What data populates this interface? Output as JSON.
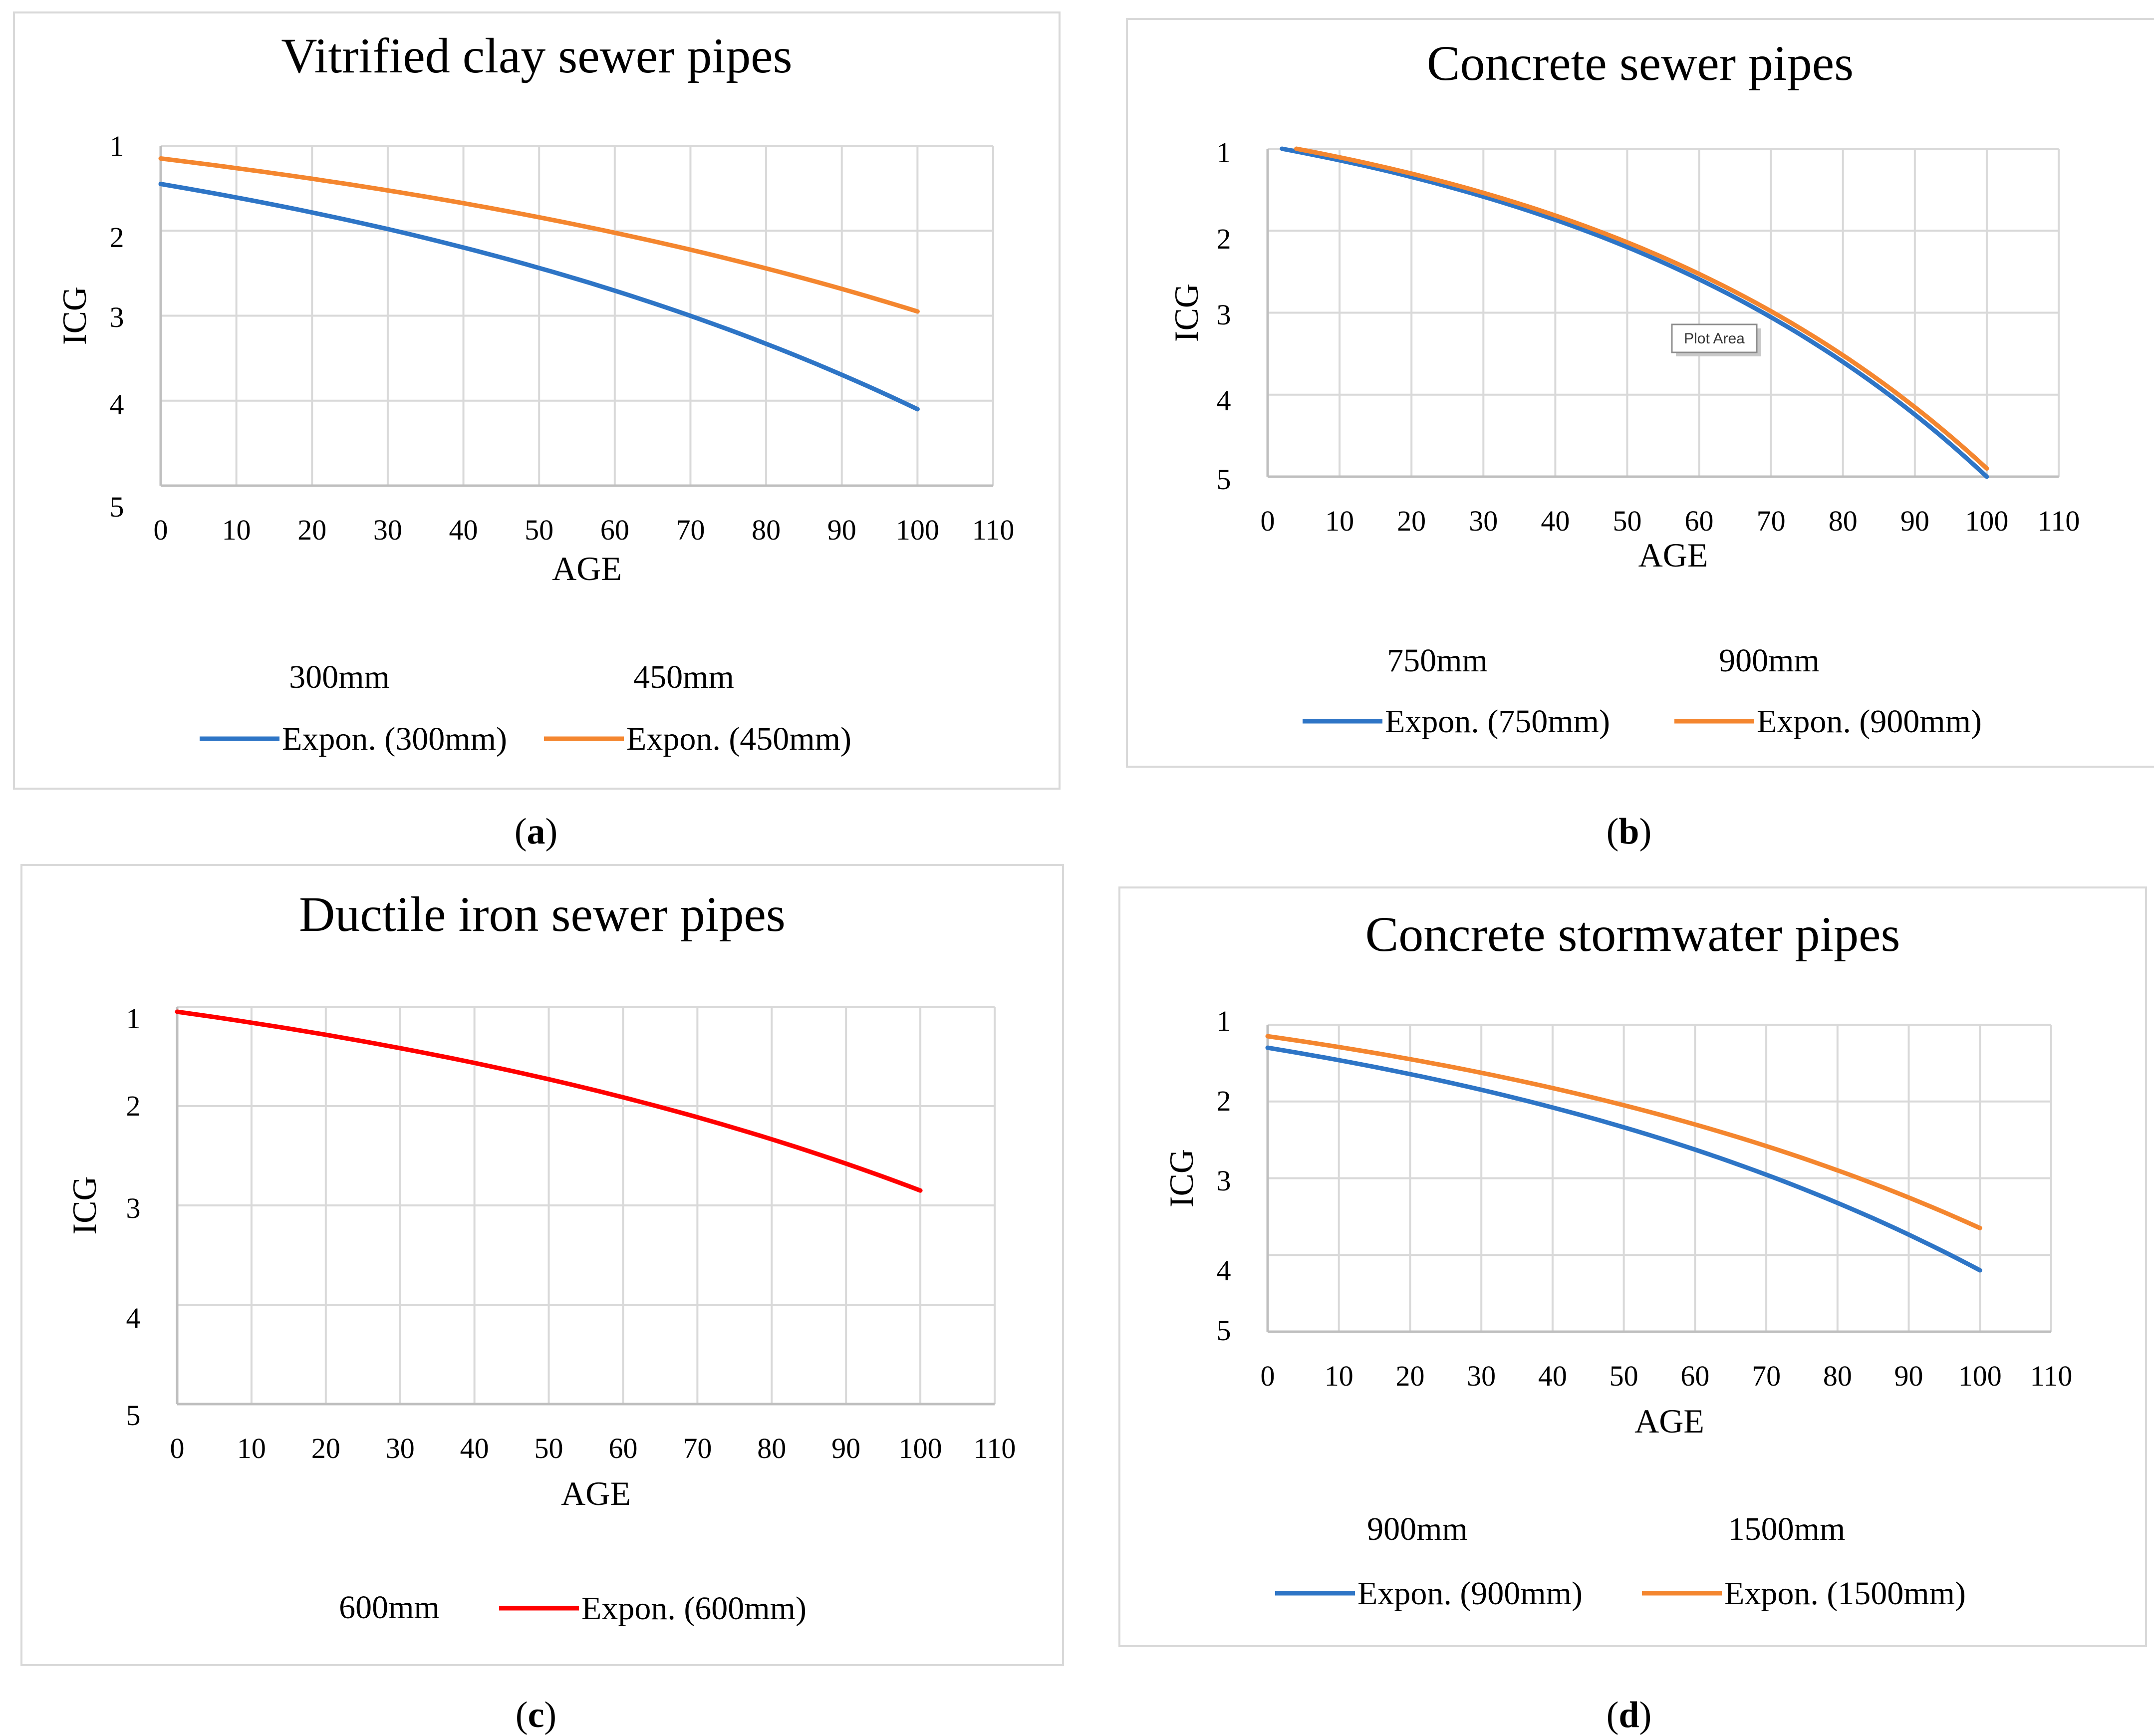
{
  "chart_data": [
    {
      "id": "a",
      "type": "line",
      "title": "Vitrified clay sewer pipes",
      "xlabel": "AGE",
      "ylabel": "ICG",
      "xlim": [
        0,
        110
      ],
      "xticks": [
        0,
        10,
        20,
        30,
        40,
        50,
        60,
        70,
        80,
        90,
        100,
        110
      ],
      "ylim": [
        1,
        5
      ],
      "yticks": [
        1,
        2,
        3,
        4,
        5
      ],
      "y_reversed": true,
      "grid": true,
      "legend_labels": [
        "300mm",
        "450mm"
      ],
      "series": [
        {
          "name": "Expon. (300mm)",
          "color": "#2e75c6",
          "x": [
            0,
            100
          ],
          "y": [
            1.45,
            4.1
          ],
          "trend": "exponential"
        },
        {
          "name": "Expon. (450mm)",
          "color": "#f4862f",
          "x": [
            0,
            100
          ],
          "y": [
            1.15,
            2.95
          ],
          "trend": "exponential"
        }
      ],
      "caption": "a"
    },
    {
      "id": "b",
      "type": "line",
      "title": "Concrete sewer pipes",
      "xlabel": "AGE",
      "ylabel": "ICG",
      "xlim": [
        0,
        110
      ],
      "xticks": [
        0,
        10,
        20,
        30,
        40,
        50,
        60,
        70,
        80,
        90,
        100,
        110
      ],
      "ylim": [
        1,
        5
      ],
      "yticks": [
        1,
        2,
        3,
        4,
        5
      ],
      "y_reversed": true,
      "grid": true,
      "legend_labels": [
        "750mm",
        "900mm"
      ],
      "series": [
        {
          "name": "Expon. (750mm)",
          "color": "#2e75c6",
          "x": [
            2,
            100
          ],
          "y": [
            1.0,
            5.0
          ],
          "trend": "exponential"
        },
        {
          "name": "Expon. (900mm)",
          "color": "#f4862f",
          "x": [
            4,
            100
          ],
          "y": [
            1.0,
            4.9
          ],
          "trend": "exponential"
        }
      ],
      "annotation": "Plot Area",
      "caption": "b"
    },
    {
      "id": "c",
      "type": "line",
      "title": "Ductile iron sewer pipes",
      "xlabel": "AGE",
      "ylabel": "ICG",
      "xlim": [
        0,
        110
      ],
      "xticks": [
        0,
        10,
        20,
        30,
        40,
        50,
        60,
        70,
        80,
        90,
        100,
        110
      ],
      "ylim": [
        1,
        5
      ],
      "yticks": [
        1,
        2,
        3,
        4,
        5
      ],
      "y_reversed": true,
      "grid": true,
      "legend_labels": [
        "600mm"
      ],
      "series": [
        {
          "name": "Expon. (600mm)",
          "color": "#ff0000",
          "x": [
            0,
            100
          ],
          "y": [
            1.05,
            2.85
          ],
          "trend": "exponential"
        }
      ],
      "caption": "c"
    },
    {
      "id": "d",
      "type": "line",
      "title": "Concrete stormwater pipes",
      "xlabel": "AGE",
      "ylabel": "ICG",
      "xlim": [
        0,
        110
      ],
      "xticks": [
        0,
        10,
        20,
        30,
        40,
        50,
        60,
        70,
        80,
        90,
        100,
        110
      ],
      "ylim": [
        1,
        5
      ],
      "yticks": [
        1,
        2,
        3,
        4,
        5
      ],
      "y_reversed": true,
      "grid": true,
      "legend_labels": [
        "900mm",
        "1500mm"
      ],
      "series": [
        {
          "name": "Expon. (900mm)",
          "color": "#2e75c6",
          "x": [
            0,
            100
          ],
          "y": [
            1.3,
            4.2
          ],
          "trend": "exponential"
        },
        {
          "name": "Expon. (1500mm)",
          "color": "#f4862f",
          "x": [
            0,
            100
          ],
          "y": [
            1.15,
            3.65
          ],
          "trend": "exponential"
        }
      ],
      "caption": "d"
    }
  ]
}
